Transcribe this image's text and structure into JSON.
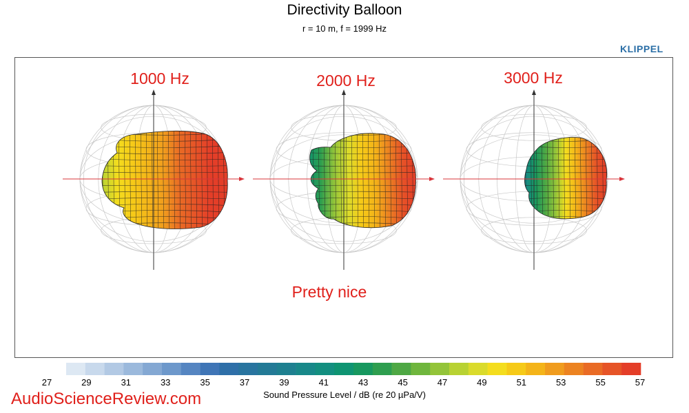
{
  "header": {
    "title": "Directivity Balloon",
    "subtitle": "r = 10 m, f =  1999 Hz",
    "brand": "KLIPPEL"
  },
  "colors": {
    "annotation": "#e0201b",
    "brand": "#2a6ea6",
    "axis_arrow": "#d8343a"
  },
  "chart_data": {
    "type": "heatmap",
    "title": "Directivity Balloon",
    "subtitle": "r = 10 m, f =  1999 Hz",
    "panels": [
      {
        "label": "1000 Hz",
        "max_db": 57,
        "min_db": 47
      },
      {
        "label": "2000 Hz",
        "max_db": 57,
        "min_db": 41
      },
      {
        "label": "3000 Hz",
        "max_db": 57,
        "min_db": 39
      }
    ],
    "annotation": "Pretty nice",
    "colorbar": {
      "label": "Sound Pressure Level / dB (re 20 µPa/V)",
      "min": 27,
      "max": 57,
      "step": 1,
      "tick_labels": [
        "27",
        "29",
        "31",
        "33",
        "35",
        "37",
        "39",
        "41",
        "43",
        "45",
        "47",
        "49",
        "51",
        "53",
        "55",
        "57"
      ],
      "colors": [
        "#dde8f3",
        "#c8d9ec",
        "#b2c9e4",
        "#9bb9dc",
        "#84a8d3",
        "#6d98cb",
        "#5585c1",
        "#3f75b6",
        "#2e6fa8",
        "#28749f",
        "#237a96",
        "#1e8090",
        "#188889",
        "#138f80",
        "#0e9472",
        "#17985f",
        "#2e9e4f",
        "#4ea844",
        "#6fb63d",
        "#93c439",
        "#b8d233",
        "#dadb2c",
        "#f4dd1e",
        "#f6ca18",
        "#f4b419",
        "#f09c1e",
        "#ec8321",
        "#e96b25",
        "#e65427",
        "#e43e28"
      ]
    }
  },
  "watermark": "AudioScienceReview.com"
}
